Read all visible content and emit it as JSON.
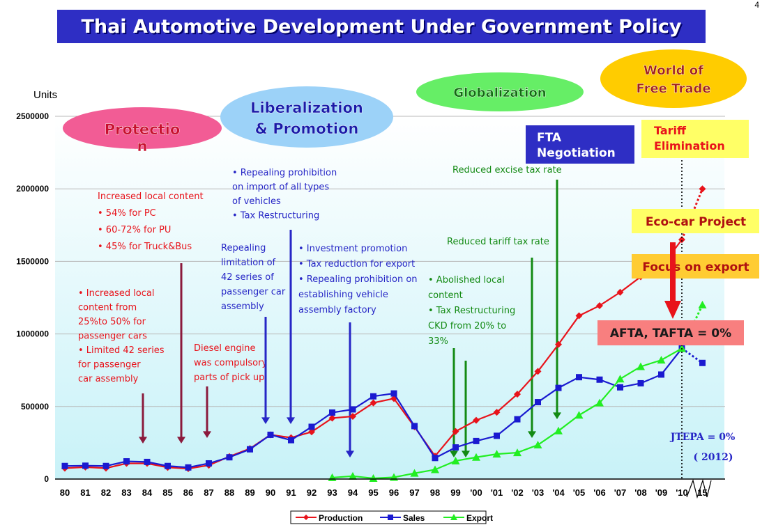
{
  "page_number": "4",
  "title": "Thai Automotive Development Under Government Policy",
  "chart_data": {
    "type": "line",
    "title": "Thai Automotive Development Under Government Policy",
    "ylabel": "Units",
    "ylim": [
      0,
      2500000
    ],
    "yticks": [
      "0",
      "500000",
      "1000000",
      "1500000",
      "2000000",
      "2500000"
    ],
    "categories": [
      "80",
      "81",
      "82",
      "83",
      "84",
      "85",
      "86",
      "87",
      "88",
      "89",
      "90",
      "91",
      "92",
      "93",
      "94",
      "95",
      "96",
      "97",
      "98",
      "99",
      "'00",
      "'01",
      "'02",
      "'03",
      "'04",
      "'05",
      "'06",
      "'07",
      "'08",
      "'09",
      "'10",
      "15"
    ],
    "grid": true,
    "legend_position": "bottom",
    "series": [
      {
        "name": "Production",
        "color": "#e8131b",
        "marker": "diamond",
        "values": [
          75000,
          82000,
          75000,
          108000,
          108000,
          80000,
          72000,
          95000,
          155000,
          210000,
          305000,
          285000,
          325000,
          420000,
          432000,
          525000,
          555000,
          360000,
          158000,
          328000,
          405000,
          460000,
          585000,
          742000,
          928000,
          1125000,
          1195000,
          1287000,
          1394000,
          1460000,
          1650000,
          2000000
        ]
      },
      {
        "name": "Sales",
        "color": "#1a1ad0",
        "marker": "square",
        "values": [
          90000,
          92000,
          90000,
          122000,
          118000,
          90000,
          80000,
          108000,
          150000,
          205000,
          305000,
          268000,
          360000,
          458000,
          480000,
          570000,
          590000,
          365000,
          145000,
          218000,
          262000,
          298000,
          412000,
          530000,
          628000,
          702000,
          685000,
          632000,
          660000,
          720000,
          900000,
          null
        ]
      },
      {
        "name": "Export",
        "color": "#22ee22",
        "marker": "triangle",
        "values": [
          null,
          null,
          null,
          null,
          null,
          null,
          null,
          null,
          null,
          null,
          null,
          null,
          null,
          10000,
          20000,
          5000,
          12000,
          40000,
          65000,
          125000,
          150000,
          172000,
          182000,
          235000,
          332000,
          440000,
          525000,
          690000,
          775000,
          820000,
          900000,
          1200000
        ]
      }
    ],
    "projection_note": "dotted segments from '10 to 15",
    "projection_end_sales": 800000,
    "eras": [
      {
        "label_line1": "Protectio",
        "label_line2": "n",
        "color": "#f25c95"
      },
      {
        "label_line1": "Liberalization",
        "label_line2": "& Promotion",
        "color": "#9cd2f8"
      },
      {
        "label_line1": "Globalization",
        "label_line2": "",
        "color": "#66ee66"
      },
      {
        "label_line1": "World of",
        "label_line2": "Free Trade",
        "color": "#ffcc00"
      }
    ],
    "annotations": {
      "local_content_1": [
        "Increased local content",
        "• 54% for PC",
        "• 60-72% for PU",
        "• 45% for Truck&Bus"
      ],
      "local_content_2": [
        "• Increased local",
        "content from",
        "25%to 50% for",
        "passenger cars",
        "• Limited 42 series",
        "for passenger",
        "car assembly"
      ],
      "diesel": [
        "Diesel engine",
        "was compulsory",
        "parts of pick up"
      ],
      "repeal_import": [
        "• Repealing prohibition",
        "on import  of all types",
        "of vehicles",
        "• Tax Restructuring"
      ],
      "repealing_limit": [
        "Repealing",
        "limitation of",
        "42 series of",
        "passenger car",
        "assembly"
      ],
      "investment": [
        "• Investment promotion",
        "• Tax reduction for export",
        "• Repealing prohibition on",
        "establishing vehicle",
        "assembly factory"
      ],
      "abolished": [
        "• Abolished local",
        "content",
        "• Tax Restructuring",
        "CKD from 20% to",
        "33%"
      ],
      "reduced_tariff": "Reduced tariff tax rate",
      "reduced_excise": "Reduced excise tax rate",
      "fta": [
        "FTA",
        "Negotiation"
      ],
      "tariff_elim": [
        "Tariff",
        "Elimination"
      ],
      "ecocar": "Eco-car Project",
      "focus_export": "Focus on export",
      "afta": "AFTA, TAFTA = 0%",
      "jtepa_1": "JTEPA = 0%",
      "jtepa_2": "( 2012)"
    },
    "colors": {
      "red_text": "#e8131b",
      "blue_text": "#2626c6",
      "green_text": "#138a13",
      "arrow_dark_red": "#8b1a3c",
      "arrow_blue": "#2626c6",
      "arrow_green": "#138a13",
      "fta_box": "#2e2ec4",
      "tariff_box": "#ffff66",
      "ecocar_box": "#ffff66",
      "focus_box": "#ffcc33",
      "afta_box": "#f87f7f"
    }
  }
}
